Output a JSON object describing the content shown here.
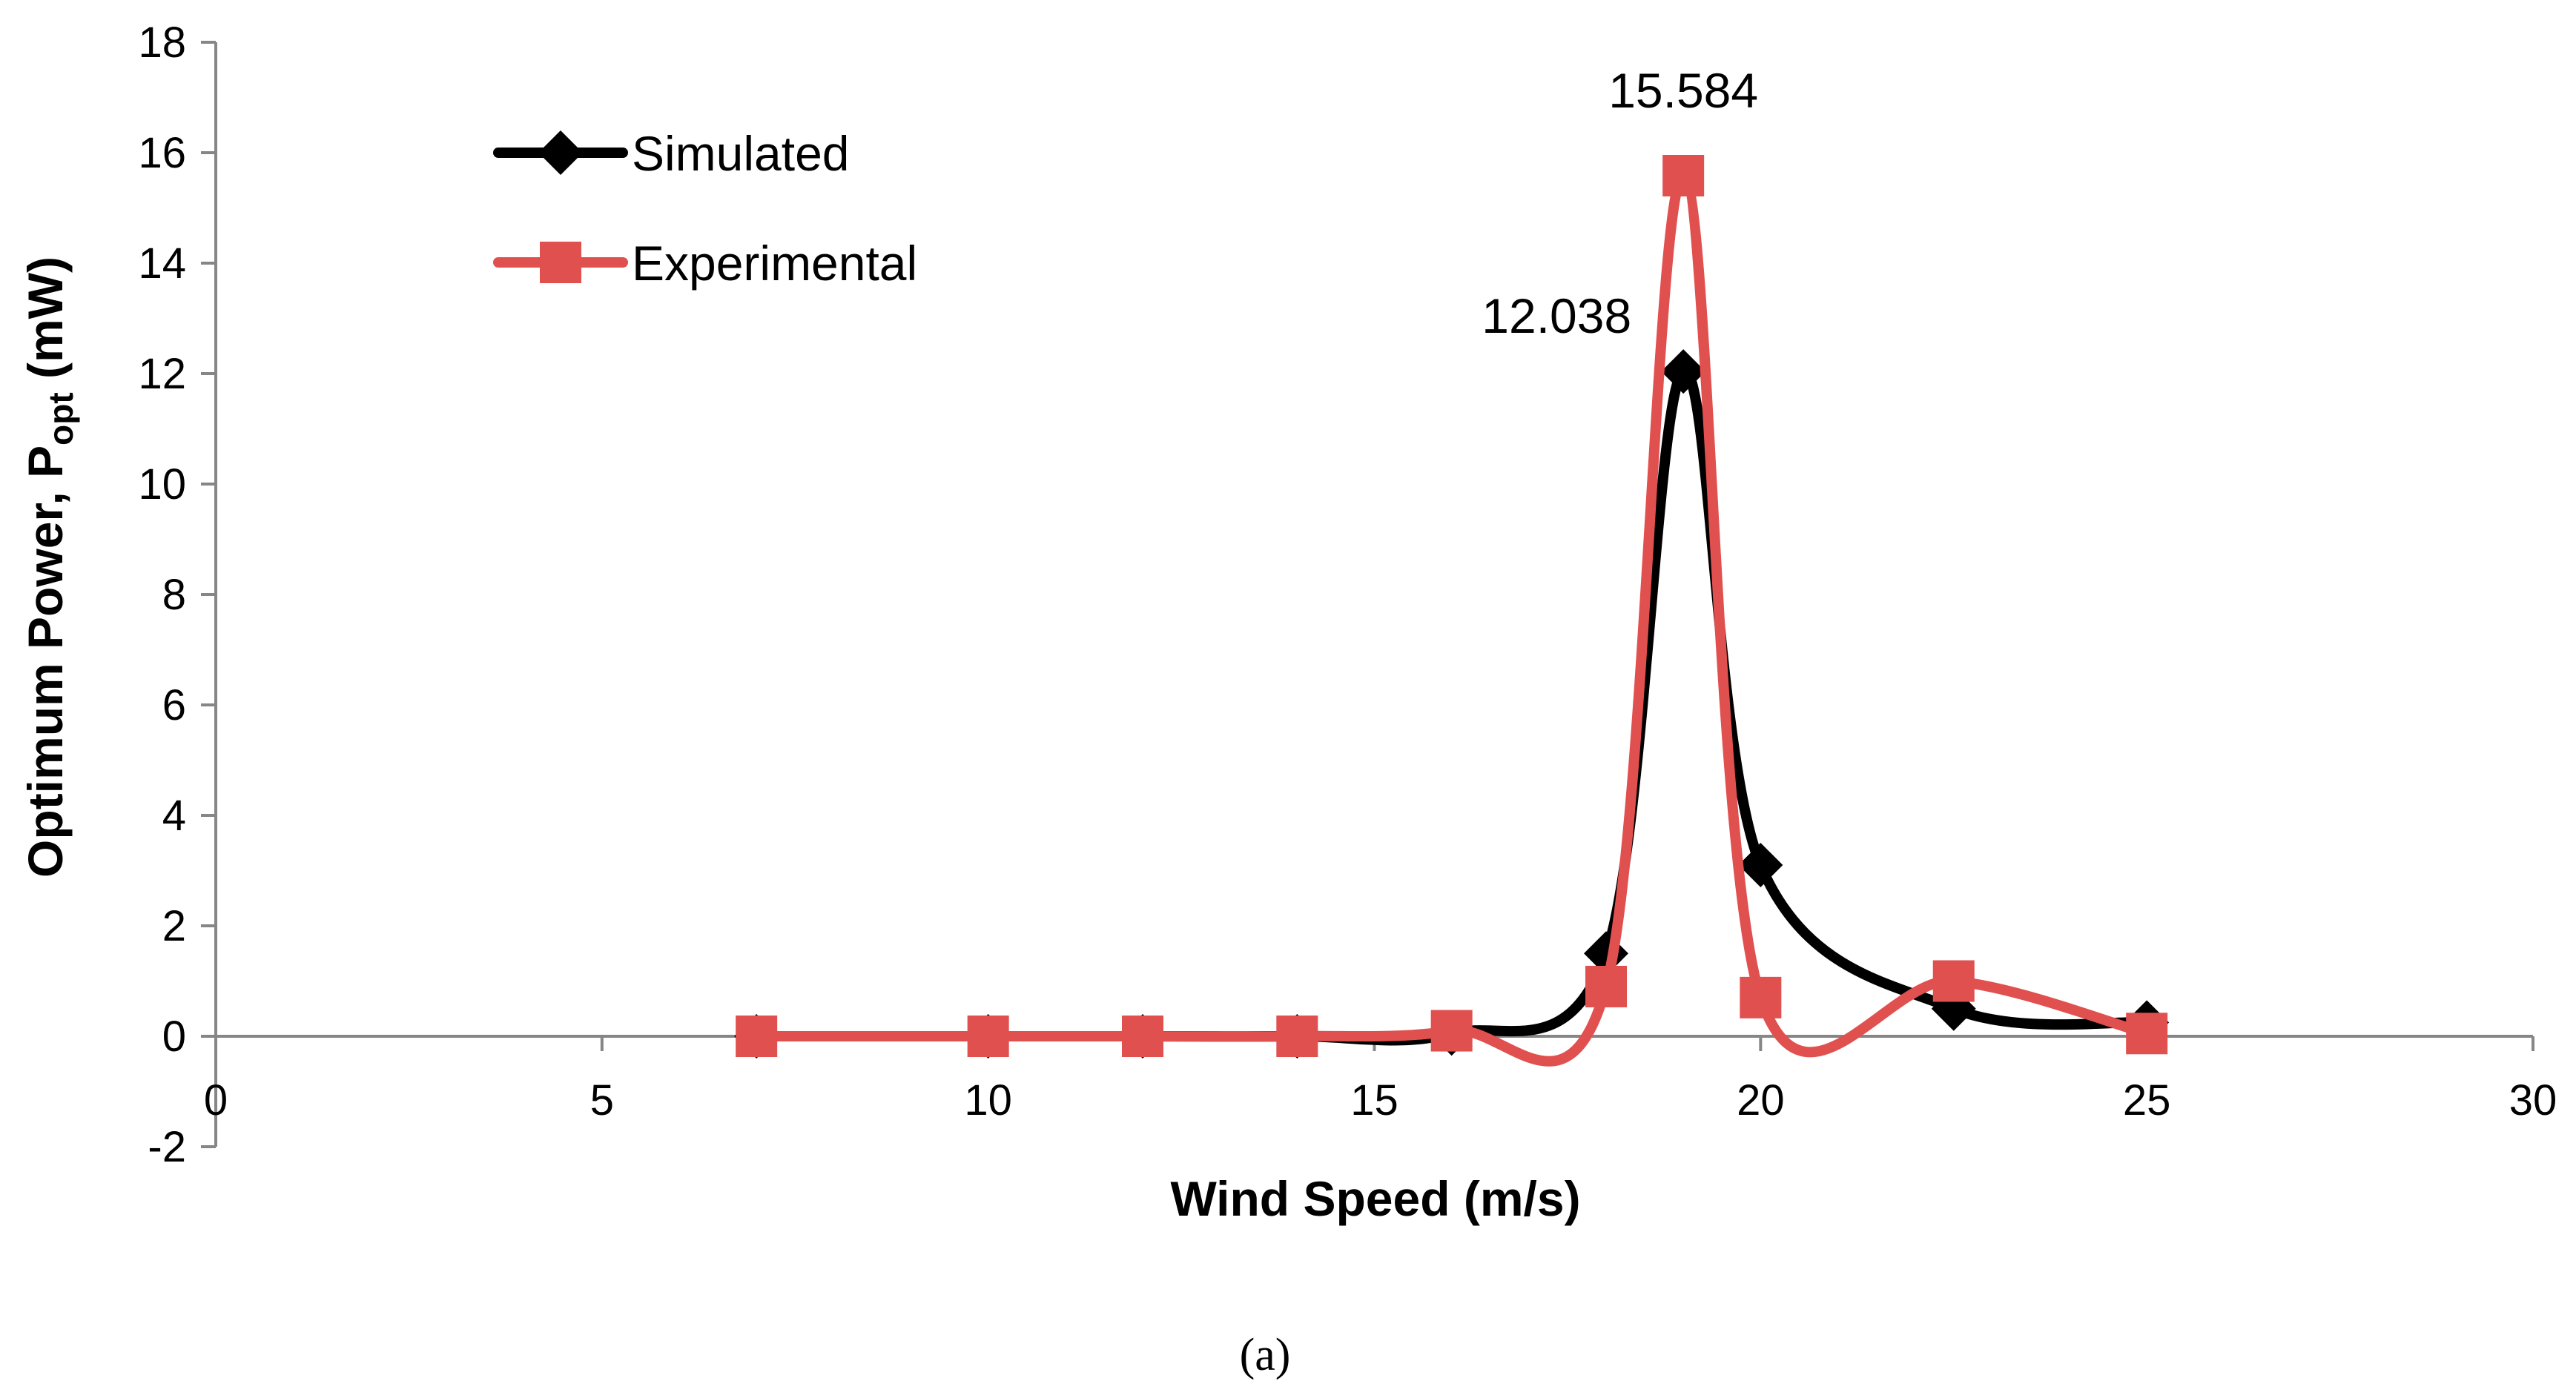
{
  "chart_data": {
    "type": "line",
    "smooth": true,
    "title": "",
    "xlabel": "Wind Speed (m/s)",
    "ylabel_main": "Optimum Power, P",
    "ylabel_sub": "opt",
    "ylabel_unit": " (mW)",
    "xlim": [
      0,
      30
    ],
    "ylim": [
      -2,
      18
    ],
    "xticks": [
      0,
      5,
      10,
      15,
      20,
      25,
      30
    ],
    "yticks": [
      -2,
      0,
      2,
      4,
      6,
      8,
      10,
      12,
      14,
      16,
      18
    ],
    "legend_position": "top-left",
    "series": [
      {
        "name": "Simulated",
        "color": "#000000",
        "marker": "diamond",
        "x": [
          7,
          10,
          12,
          14,
          16,
          18,
          19,
          20,
          22.5,
          25
        ],
        "y": [
          0,
          0,
          0,
          0,
          0.05,
          1.5,
          12.038,
          3.1,
          0.5,
          0.25
        ]
      },
      {
        "name": "Experimental",
        "color": "#e0504f",
        "marker": "square",
        "x": [
          7,
          10,
          12,
          14,
          16,
          18,
          19,
          20,
          22.5,
          25
        ],
        "y": [
          0,
          0,
          0,
          0,
          0.1,
          0.9,
          15.584,
          0.7,
          1.0,
          0.05
        ]
      }
    ],
    "annotations": [
      {
        "text": "15.584",
        "x": 19,
        "y": 15.584,
        "series": "Experimental"
      },
      {
        "text": "12.038",
        "x": 19,
        "y": 12.038,
        "series": "Simulated"
      }
    ]
  },
  "caption": "(a)"
}
